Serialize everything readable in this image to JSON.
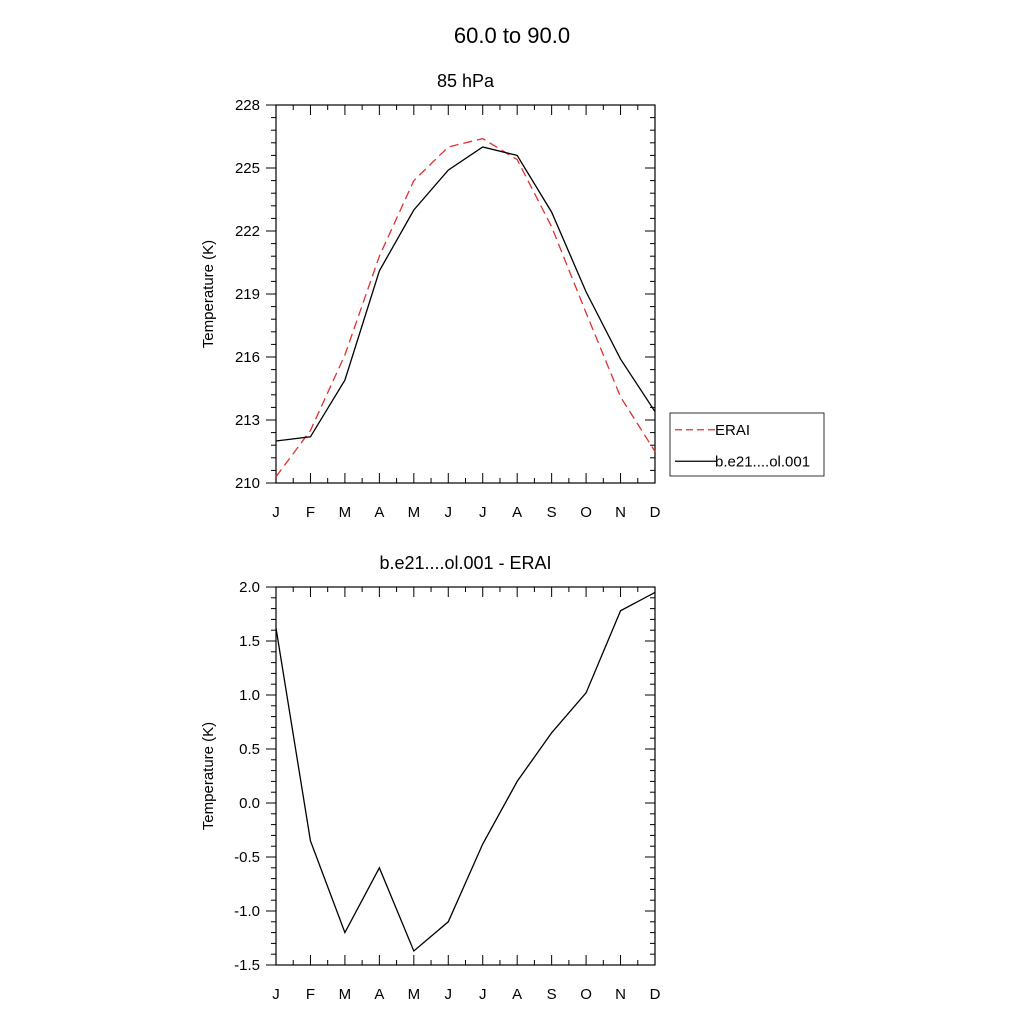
{
  "main_title": "60.0 to  90.0",
  "chart_data": [
    {
      "type": "line",
      "title": "85 hPa",
      "xlabel": "",
      "ylabel": "Temperature (K)",
      "categories": [
        "J",
        "F",
        "M",
        "A",
        "M",
        "J",
        "J",
        "A",
        "S",
        "O",
        "N",
        "D"
      ],
      "ylim": [
        210,
        228
      ],
      "yticks": [
        "210",
        "213",
        "216",
        "219",
        "222",
        "225",
        "228"
      ],
      "grid": false,
      "legend_position": "right",
      "series": [
        {
          "name": "ERAI",
          "color": "#e03030",
          "dash": "dashed",
          "values": [
            210.3,
            212.5,
            216.1,
            220.8,
            224.4,
            226.0,
            226.4,
            225.4,
            222.2,
            218.1,
            214.1,
            211.5
          ]
        },
        {
          "name": "b.e21....ol.001",
          "color": "#000000",
          "dash": "solid",
          "values": [
            212.0,
            212.2,
            214.9,
            220.1,
            223.0,
            224.9,
            226.0,
            225.6,
            222.9,
            219.1,
            215.9,
            213.4
          ]
        }
      ]
    },
    {
      "type": "line",
      "title": "b.e21....ol.001 - ERAI",
      "xlabel": "",
      "ylabel": "Temperature (K)",
      "categories": [
        "J",
        "F",
        "M",
        "A",
        "M",
        "J",
        "J",
        "A",
        "S",
        "O",
        "N",
        "D"
      ],
      "ylim": [
        -1.5,
        2.0
      ],
      "yticks": [
        "-1.5",
        "-1.0",
        "-0.5",
        "0.0",
        "0.5",
        "1.0",
        "1.5",
        "2.0"
      ],
      "grid": false,
      "series": [
        {
          "color": "#000000",
          "dash": "solid",
          "values": [
            1.62,
            -0.35,
            -1.2,
            -0.6,
            -1.37,
            -1.1,
            -0.38,
            0.2,
            0.65,
            1.02,
            1.78,
            1.95
          ]
        }
      ]
    }
  ]
}
